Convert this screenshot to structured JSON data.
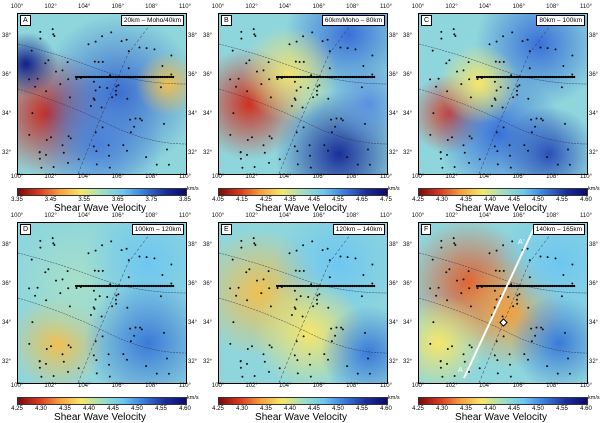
{
  "lon_labels": [
    "100°",
    "102°",
    "104°",
    "106°",
    "108°",
    "110°"
  ],
  "lat_labels": [
    "38°",
    "36°",
    "34°",
    "32°"
  ],
  "colorbar_title": "Shear Wave Velocity",
  "unit": "km/s",
  "panels": [
    {
      "label": "A",
      "depth": "20km – Moho/40km",
      "ticks": [
        "3.35",
        "3.45",
        "3.55",
        "3.65",
        "3.75",
        "3.85"
      ]
    },
    {
      "label": "B",
      "depth": "60km/Moho – 80km",
      "ticks": [
        "4.05",
        "4.15",
        "4.25",
        "4.35",
        "4.45",
        "4.55",
        "4.65",
        "4.75"
      ]
    },
    {
      "label": "C",
      "depth": "80km – 100km",
      "ticks": [
        "4.25",
        "4.30",
        "4.35",
        "4.40",
        "4.45",
        "4.50",
        "4.55",
        "4.60"
      ]
    },
    {
      "label": "D",
      "depth": "100km – 120km",
      "ticks": [
        "4.25",
        "4.30",
        "4.35",
        "4.40",
        "4.45",
        "4.50",
        "4.55",
        "4.60"
      ]
    },
    {
      "label": "E",
      "depth": "120km – 140km",
      "ticks": [
        "4.25",
        "4.30",
        "4.35",
        "4.40",
        "4.45",
        "4.50",
        "4.55",
        "4.60"
      ]
    },
    {
      "label": "F",
      "depth": "140km – 165km",
      "ticks": [
        "4.25",
        "4.30",
        "4.35",
        "4.40",
        "4.45",
        "4.50",
        "4.55",
        "4.60"
      ]
    }
  ],
  "profile": {
    "start": "A",
    "end": "A'"
  }
}
